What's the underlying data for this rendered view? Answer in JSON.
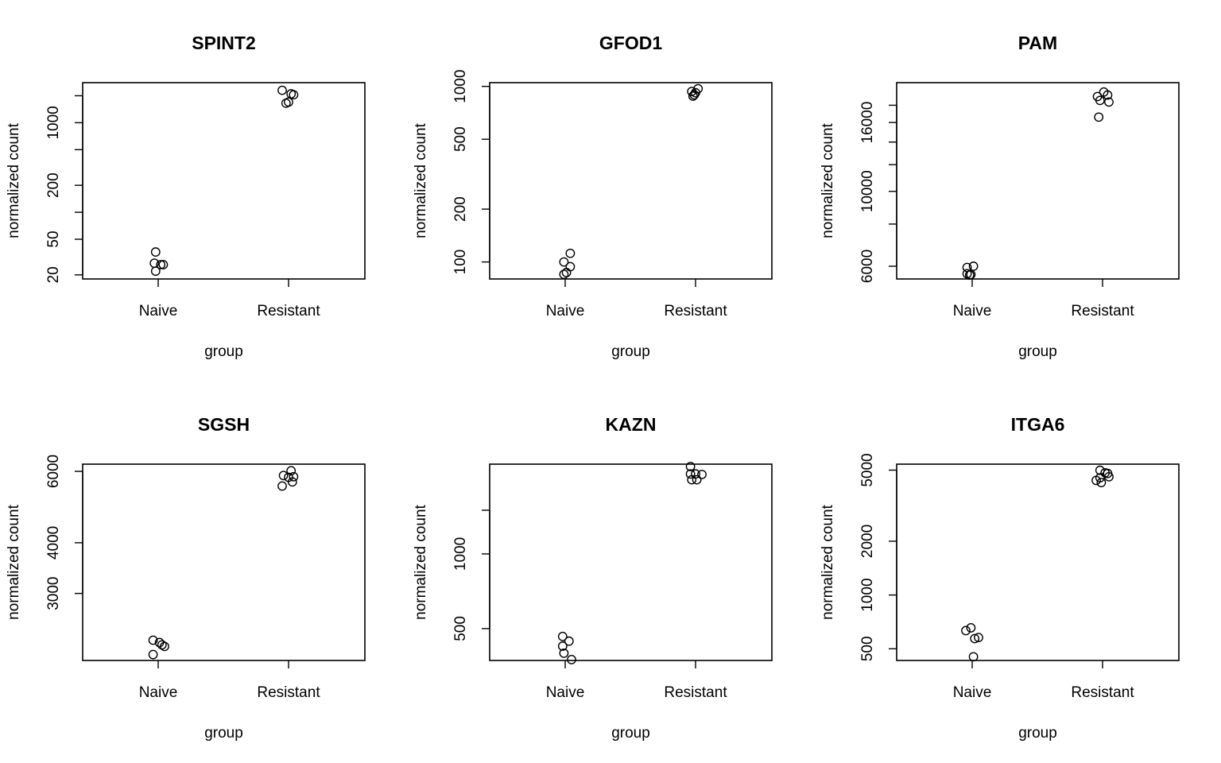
{
  "chart_data": [
    {
      "type": "scatter",
      "title": "SPINT2",
      "xlabel": "group",
      "ylabel": "normalized count",
      "y_scale": "log",
      "ylim": [
        18,
        2800
      ],
      "categories": [
        "Naive",
        "Resistant"
      ],
      "yticks": [
        20,
        50,
        200,
        1000
      ],
      "yticks_minor": [
        100,
        500,
        2000
      ],
      "series": [
        {
          "category": "Naive",
          "points": [
            [
              -0.02,
              36
            ],
            [
              -0.03,
              27
            ],
            [
              0.02,
              26
            ],
            [
              0.04,
              26
            ],
            [
              -0.02,
              22
            ]
          ]
        },
        {
          "category": "Resistant",
          "points": [
            [
              -0.05,
              2300
            ],
            [
              0.02,
              2100
            ],
            [
              0.04,
              2050
            ],
            [
              0.0,
              1700
            ],
            [
              -0.02,
              1650
            ]
          ]
        }
      ]
    },
    {
      "type": "scatter",
      "title": "GFOD1",
      "xlabel": "group",
      "ylabel": "normalized count",
      "y_scale": "log",
      "ylim": [
        80,
        1050
      ],
      "categories": [
        "Naive",
        "Resistant"
      ],
      "yticks": [
        100,
        200,
        500,
        1000
      ],
      "series": [
        {
          "category": "Naive",
          "points": [
            [
              0.04,
              112
            ],
            [
              -0.01,
              100
            ],
            [
              0.04,
              94
            ],
            [
              0.01,
              87
            ],
            [
              -0.01,
              85
            ]
          ]
        },
        {
          "category": "Resistant",
          "points": [
            [
              0.02,
              970
            ],
            [
              -0.03,
              935
            ],
            [
              0.0,
              920
            ],
            [
              -0.01,
              895
            ],
            [
              -0.02,
              880
            ]
          ]
        }
      ]
    },
    {
      "type": "scatter",
      "title": "PAM",
      "xlabel": "group",
      "ylabel": "normalized count",
      "y_scale": "log",
      "ylim": [
        5500,
        21000
      ],
      "categories": [
        "Naive",
        "Resistant"
      ],
      "yticks": [
        6000,
        10000,
        16000
      ],
      "yticks_minor": [
        8000,
        12000,
        14000,
        18000
      ],
      "series": [
        {
          "category": "Naive",
          "points": [
            [
              -0.04,
              5950
            ],
            [
              0.01,
              6000
            ],
            [
              -0.04,
              5700
            ],
            [
              -0.01,
              5670
            ],
            [
              -0.02,
              5650
            ]
          ]
        },
        {
          "category": "Resistant",
          "points": [
            [
              0.01,
              19700
            ],
            [
              -0.04,
              19100
            ],
            [
              0.04,
              19300
            ],
            [
              -0.02,
              18600
            ],
            [
              0.05,
              18400
            ],
            [
              -0.03,
              16600
            ]
          ]
        }
      ]
    },
    {
      "type": "scatter",
      "title": "SGSH",
      "xlabel": "group",
      "ylabel": "normalized count",
      "y_scale": "log",
      "ylim": [
        2050,
        6250
      ],
      "categories": [
        "Naive",
        "Resistant"
      ],
      "yticks": [
        3000,
        4000,
        6000
      ],
      "series": [
        {
          "category": "Naive",
          "points": [
            [
              -0.04,
              2300
            ],
            [
              0.01,
              2270
            ],
            [
              0.03,
              2240
            ],
            [
              0.05,
              2220
            ],
            [
              -0.04,
              2120
            ]
          ]
        },
        {
          "category": "Resistant",
          "points": [
            [
              0.02,
              6020
            ],
            [
              -0.04,
              5860
            ],
            [
              0.04,
              5820
            ],
            [
              0.0,
              5800
            ],
            [
              0.03,
              5650
            ],
            [
              -0.05,
              5520
            ]
          ]
        }
      ]
    },
    {
      "type": "scatter",
      "title": "KAZN",
      "xlabel": "group",
      "ylabel": "normalized count",
      "y_scale": "log",
      "ylim": [
        372,
        2300
      ],
      "categories": [
        "Naive",
        "Resistant"
      ],
      "yticks": [
        500,
        1000
      ],
      "yticks_minor": [
        1500
      ],
      "series": [
        {
          "category": "Naive",
          "points": [
            [
              -0.02,
              465
            ],
            [
              0.03,
              445
            ],
            [
              -0.02,
              425
            ],
            [
              -0.01,
              398
            ],
            [
              0.05,
              375
            ]
          ]
        },
        {
          "category": "Resistant",
          "points": [
            [
              -0.04,
              2250
            ],
            [
              -0.04,
              2100
            ],
            [
              0.0,
              2100
            ],
            [
              0.05,
              2090
            ],
            [
              -0.03,
              1990
            ],
            [
              0.01,
              1990
            ]
          ]
        }
      ]
    },
    {
      "type": "scatter",
      "title": "ITGA6",
      "xlabel": "group",
      "ylabel": "normalized count",
      "y_scale": "log",
      "ylim": [
        430,
        5400
      ],
      "categories": [
        "Naive",
        "Resistant"
      ],
      "yticks": [
        500,
        1000,
        2000,
        5000
      ],
      "series": [
        {
          "category": "Naive",
          "points": [
            [
              -0.01,
              655
            ],
            [
              -0.05,
              632
            ],
            [
              0.05,
              578
            ],
            [
              0.02,
              570
            ],
            [
              0.01,
              451
            ]
          ]
        },
        {
          "category": "Resistant",
          "points": [
            [
              -0.02,
              4990
            ],
            [
              0.02,
              4830
            ],
            [
              0.04,
              4790
            ],
            [
              -0.02,
              4530
            ],
            [
              0.05,
              4590
            ],
            [
              -0.05,
              4380
            ],
            [
              -0.01,
              4260
            ]
          ]
        }
      ]
    }
  ]
}
